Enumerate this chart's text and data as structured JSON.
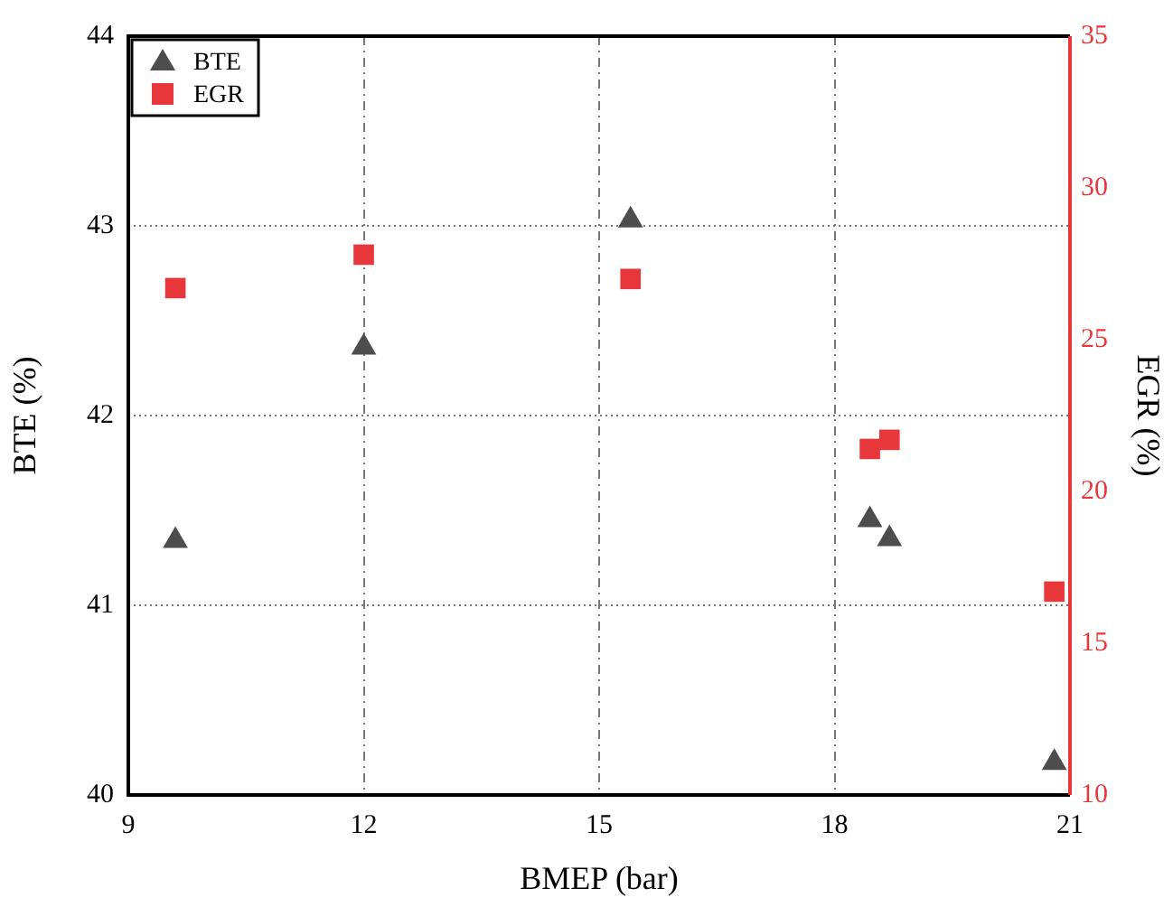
{
  "chart_data": {
    "type": "scatter",
    "xlabel": "BMEP (bar)",
    "ylabel": "BTE (%)",
    "y2label": "EGR (%)",
    "xlim": [
      9,
      21
    ],
    "xticks": [
      9,
      12,
      15,
      18,
      21
    ],
    "ylim": [
      40,
      44
    ],
    "yticks": [
      40,
      41,
      42,
      43,
      44
    ],
    "y2lim": [
      10,
      35
    ],
    "y2ticks": [
      10,
      15,
      20,
      25,
      30,
      35
    ],
    "grid": true,
    "legend": "top left",
    "series": [
      {
        "name": "BTE",
        "color": "#4d4d4d",
        "marker": "triangle",
        "x": [
          9.6,
          12.0,
          15.4,
          18.45,
          18.7,
          20.8
        ],
        "values": [
          41.34,
          42.36,
          43.03,
          41.45,
          41.35,
          40.17
        ]
      },
      {
        "name": "EGR",
        "color": "#e8373a",
        "marker": "square",
        "axis": "y2",
        "x": [
          9.6,
          12.0,
          15.4,
          18.45,
          18.7,
          20.8
        ],
        "values": [
          26.7,
          27.8,
          27.0,
          21.4,
          21.7,
          16.7
        ]
      }
    ]
  }
}
